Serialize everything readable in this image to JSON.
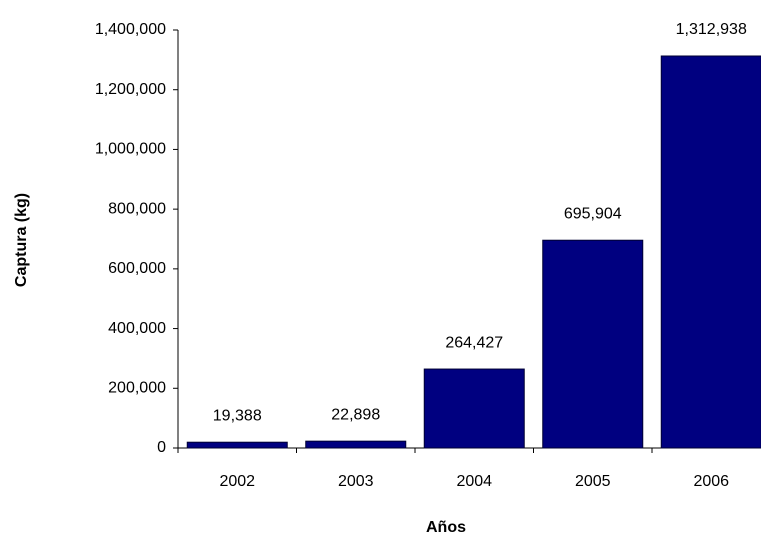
{
  "chart_data": {
    "type": "bar",
    "x_label": "Años",
    "y_label": "Captura (kg)",
    "categories": [
      "2002",
      "2003",
      "2004",
      "2005",
      "2006"
    ],
    "values": [
      19388,
      22898,
      264427,
      695904,
      1312938
    ],
    "value_labels": [
      "19,388",
      "22,898",
      "264,427",
      "695,904",
      "1,312,938"
    ],
    "color": "#000080",
    "ylim": [
      0,
      1400000
    ],
    "yticks": [
      0,
      {
        "value": 200000,
        "label": "200,000"
      },
      {
        "value": 400000,
        "label": "400,000"
      },
      {
        "value": 600000,
        "label": "600,000"
      },
      {
        "value": 800000,
        "label": "800,000"
      },
      {
        "value": 1000000,
        "label": "1,000,000"
      },
      {
        "value": 1200000,
        "label": "1,200,000"
      },
      {
        "value": 1400000,
        "label": "1,400,000"
      }
    ],
    "grid": false
  }
}
